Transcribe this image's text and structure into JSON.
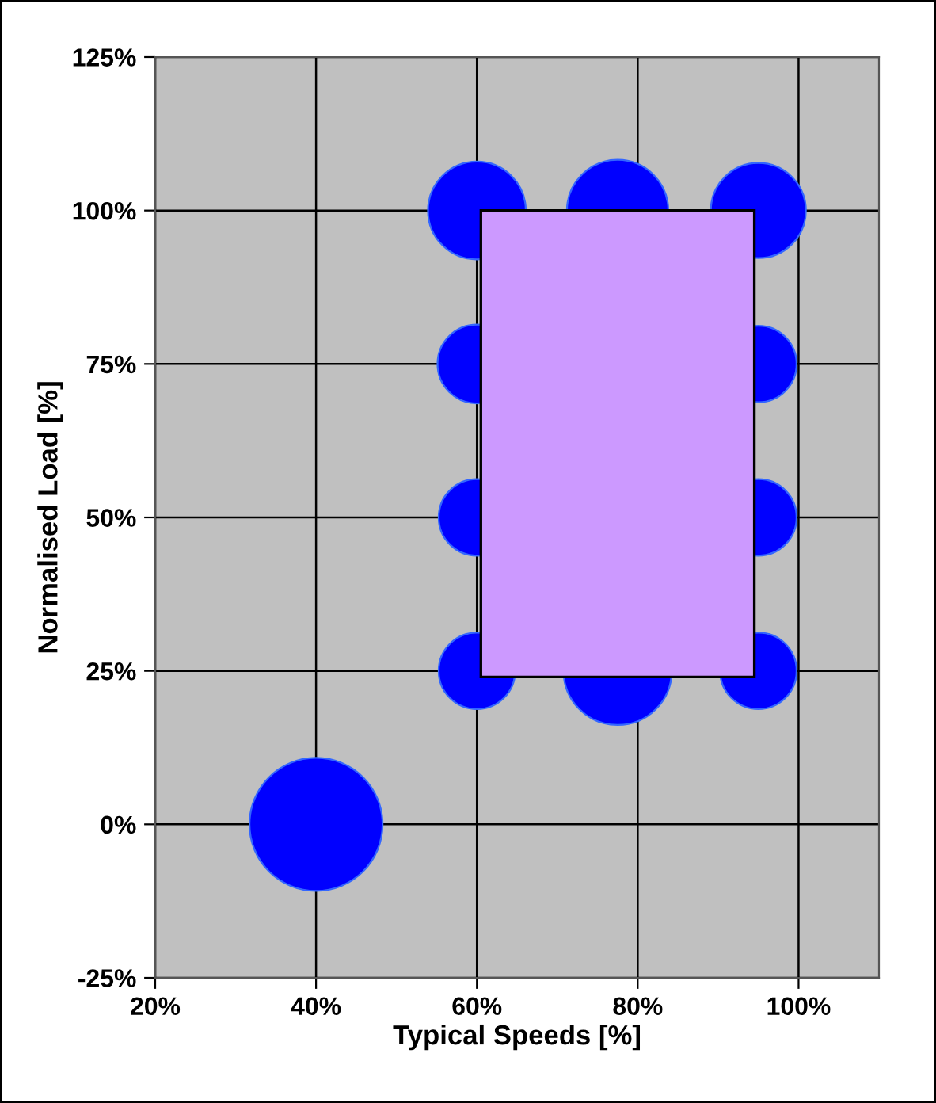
{
  "chart_data": {
    "type": "bubble",
    "xlabel": "Typical Speeds [%]",
    "ylabel": "Normalised Load [%]",
    "xlim": [
      20,
      110
    ],
    "xticks": [
      {
        "value": 20,
        "label": "20%"
      },
      {
        "value": 40,
        "label": "40%"
      },
      {
        "value": 60,
        "label": "60%"
      },
      {
        "value": 80,
        "label": "80%"
      },
      {
        "value": 100,
        "label": "100%"
      }
    ],
    "ylim": [
      -25,
      125
    ],
    "yticks": [
      {
        "value": -25,
        "label": "-25%"
      },
      {
        "value": 0,
        "label": "0%"
      },
      {
        "value": 25,
        "label": "25%"
      },
      {
        "value": 50,
        "label": "50%"
      },
      {
        "value": 75,
        "label": "75%"
      },
      {
        "value": 100,
        "label": "100%"
      },
      {
        "value": 125,
        "label": "125%"
      }
    ],
    "grid": true,
    "series": [
      {
        "color": "#0000ff",
        "x": [
          40,
          60,
          60,
          60,
          60,
          77.5,
          77.5,
          95,
          95,
          95,
          95
        ],
        "values": [
          0,
          100,
          75,
          50,
          25,
          100,
          25,
          100,
          75,
          50,
          25
        ],
        "sizes": [
          1,
          0.54,
          0.35,
          0.33,
          0.33,
          0.58,
          0.66,
          0.51,
          0.33,
          0.33,
          0.33
        ]
      },
      {
        "type": "bar",
        "color": "#cc99ff",
        "x": [
          77.5
        ],
        "base": [
          24
        ],
        "values": [
          76
        ]
      }
    ]
  }
}
